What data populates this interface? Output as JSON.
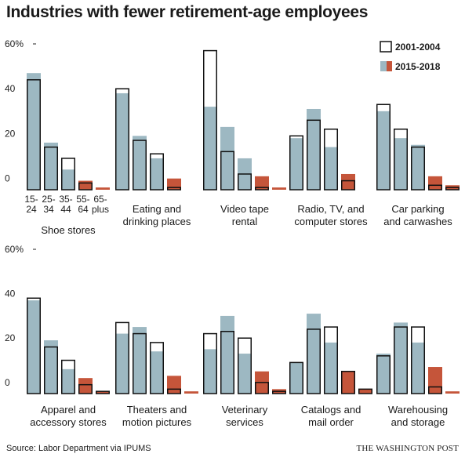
{
  "title": "Industries with fewer retirement-age employees",
  "source": "Source: Labor Department via IPUMS",
  "credit": "THE WASHINGTON POST",
  "chart_data": {
    "type": "bar",
    "layout": "small-multiples",
    "ylim": [
      -5,
      60
    ],
    "ytick_values": [
      0,
      20,
      40,
      60
    ],
    "ytick_labels": [
      "0",
      "20",
      "40",
      "60%"
    ],
    "age_group_labels": [
      [
        "15-",
        "24"
      ],
      [
        "25-",
        "34"
      ],
      [
        "35-",
        "44"
      ],
      [
        "55-",
        "64"
      ],
      [
        "65-",
        "plus"
      ]
    ],
    "legend": [
      {
        "name": "2001-2004",
        "color": "#ffffff",
        "outline": "#111111"
      },
      {
        "name": "2015-2018",
        "colors": [
          "#9db8c2",
          "#c5553a"
        ]
      }
    ],
    "colors": {
      "young": "#9db8c2",
      "old": "#c5553a",
      "outline": "#111111"
    },
    "panels": [
      {
        "label": [
          "Shoe stores"
        ],
        "y2001_2004": [
          44,
          14,
          9,
          -2,
          -5
        ],
        "y2015_2018": [
          47,
          16,
          4,
          -1,
          -4
        ]
      },
      {
        "label": [
          "Eating and",
          "drinking places"
        ],
        "y2001_2004": [
          40,
          17,
          11,
          -4,
          -5
        ],
        "y2015_2018": [
          38,
          19,
          9,
          0,
          -5
        ]
      },
      {
        "label": [
          "Video tape",
          "rental"
        ],
        "y2001_2004": [
          57,
          12,
          2,
          -4,
          -5
        ],
        "y2015_2018": [
          32,
          23,
          9,
          1,
          -4
        ]
      },
      {
        "label": [
          "Radio, TV, and",
          "computer stores"
        ],
        "y2001_2004": [
          19,
          26,
          22,
          -1,
          -5
        ],
        "y2015_2018": [
          18,
          31,
          14,
          2,
          -5
        ]
      },
      {
        "label": [
          "Car parking",
          "and carwashes"
        ],
        "y2001_2004": [
          33,
          22,
          14,
          -3,
          -4
        ],
        "y2015_2018": [
          30,
          18,
          15,
          1,
          -3
        ]
      },
      {
        "label": [
          "Apparel and",
          "accessory stores"
        ],
        "y2001_2004": [
          38,
          16,
          10,
          -1,
          -4
        ],
        "y2015_2018": [
          37,
          19,
          6,
          2,
          -4
        ]
      },
      {
        "label": [
          "Theaters and",
          "motion pictures"
        ],
        "y2001_2004": [
          27,
          22,
          18,
          -3,
          -5
        ],
        "y2015_2018": [
          22,
          25,
          14,
          3,
          -4
        ]
      },
      {
        "label": [
          "Veterinary",
          "services"
        ],
        "y2001_2004": [
          22,
          23,
          20,
          0,
          -4
        ],
        "y2015_2018": [
          15,
          30,
          13,
          5,
          -3
        ]
      },
      {
        "label": [
          "Catalogs and",
          "mail order"
        ],
        "y2001_2004": [
          9,
          24,
          25,
          5,
          -3
        ],
        "y2015_2018": [
          9,
          31,
          18,
          5,
          -3
        ]
      },
      {
        "label": [
          "Warehousing",
          "and storage"
        ],
        "y2001_2004": [
          12,
          25,
          25,
          -2,
          -5
        ],
        "y2015_2018": [
          13,
          27,
          18,
          7,
          -4
        ]
      }
    ]
  }
}
